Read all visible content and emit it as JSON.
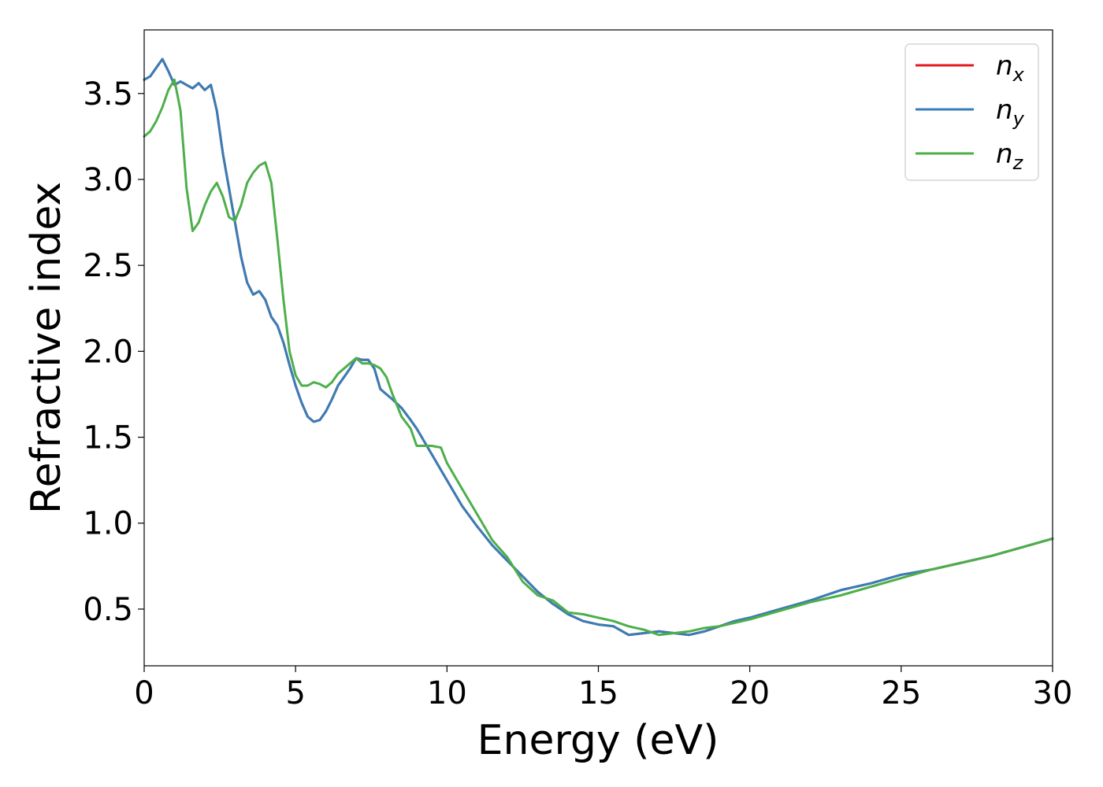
{
  "chart_data": {
    "type": "line",
    "title": "",
    "xlabel": "Energy (eV)",
    "ylabel": "Refractive index",
    "xlim": [
      0,
      30
    ],
    "ylim": [
      0.17,
      3.87
    ],
    "xticks": [
      0,
      5,
      10,
      15,
      20,
      25,
      30
    ],
    "yticks": [
      0.5,
      1.0,
      1.5,
      2.0,
      2.5,
      3.0,
      3.5
    ],
    "xtick_labels": [
      "0",
      "5",
      "10",
      "15",
      "20",
      "25",
      "30"
    ],
    "ytick_labels": [
      "0.5",
      "1.0",
      "1.5",
      "2.0",
      "2.5",
      "3.0",
      "3.5"
    ],
    "grid": false,
    "legend": "top-right",
    "series": [
      {
        "name": "n",
        "subscript": "x",
        "color": "#e41a1c",
        "x": [
          0,
          0.2,
          0.4,
          0.6,
          0.8,
          1.0,
          1.2,
          1.4,
          1.6,
          1.8,
          2.0,
          2.2,
          2.4,
          2.6,
          2.8,
          3.0,
          3.2,
          3.4,
          3.6,
          3.8,
          4.0,
          4.2,
          4.4,
          4.6,
          4.8,
          5.0,
          5.2,
          5.4,
          5.6,
          5.8,
          6.0,
          6.2,
          6.4,
          6.6,
          6.8,
          7.0,
          7.2,
          7.4,
          7.6,
          7.8,
          8.0,
          8.2,
          8.5,
          8.8,
          9.0,
          9.5,
          10.0,
          10.5,
          11.0,
          11.5,
          12.0,
          12.5,
          13.0,
          13.5,
          14.0,
          14.5,
          15.0,
          15.5,
          16.0,
          16.5,
          17.0,
          17.5,
          18.0,
          18.5,
          19.0,
          19.5,
          20.0,
          21.0,
          22.0,
          23.0,
          24.0,
          25.0,
          26.0,
          27.0,
          28.0,
          29.0,
          30.0
        ],
        "y": [
          3.58,
          3.6,
          3.65,
          3.7,
          3.63,
          3.55,
          3.57,
          3.55,
          3.53,
          3.56,
          3.52,
          3.55,
          3.4,
          3.15,
          2.95,
          2.75,
          2.55,
          2.4,
          2.33,
          2.35,
          2.3,
          2.2,
          2.15,
          2.05,
          1.92,
          1.8,
          1.7,
          1.62,
          1.59,
          1.6,
          1.65,
          1.72,
          1.8,
          1.85,
          1.9,
          1.96,
          1.95,
          1.95,
          1.9,
          1.78,
          1.75,
          1.72,
          1.67,
          1.6,
          1.55,
          1.4,
          1.25,
          1.1,
          0.98,
          0.87,
          0.78,
          0.69,
          0.6,
          0.53,
          0.47,
          0.43,
          0.41,
          0.4,
          0.35,
          0.36,
          0.37,
          0.36,
          0.35,
          0.37,
          0.4,
          0.43,
          0.45,
          0.5,
          0.55,
          0.61,
          0.65,
          0.7,
          0.73,
          0.77,
          0.81,
          0.86,
          0.91
        ]
      },
      {
        "name": "n",
        "subscript": "y",
        "color": "#377eb8",
        "x": [
          0,
          0.2,
          0.4,
          0.6,
          0.8,
          1.0,
          1.2,
          1.4,
          1.6,
          1.8,
          2.0,
          2.2,
          2.4,
          2.6,
          2.8,
          3.0,
          3.2,
          3.4,
          3.6,
          3.8,
          4.0,
          4.2,
          4.4,
          4.6,
          4.8,
          5.0,
          5.2,
          5.4,
          5.6,
          5.8,
          6.0,
          6.2,
          6.4,
          6.6,
          6.8,
          7.0,
          7.2,
          7.4,
          7.6,
          7.8,
          8.0,
          8.2,
          8.5,
          8.8,
          9.0,
          9.5,
          10.0,
          10.5,
          11.0,
          11.5,
          12.0,
          12.5,
          13.0,
          13.5,
          14.0,
          14.5,
          15.0,
          15.5,
          16.0,
          16.5,
          17.0,
          17.5,
          18.0,
          18.5,
          19.0,
          19.5,
          20.0,
          21.0,
          22.0,
          23.0,
          24.0,
          25.0,
          26.0,
          27.0,
          28.0,
          29.0,
          30.0
        ],
        "y": [
          3.58,
          3.6,
          3.65,
          3.7,
          3.63,
          3.55,
          3.57,
          3.55,
          3.53,
          3.56,
          3.52,
          3.55,
          3.4,
          3.15,
          2.95,
          2.75,
          2.55,
          2.4,
          2.33,
          2.35,
          2.3,
          2.2,
          2.15,
          2.05,
          1.92,
          1.8,
          1.7,
          1.62,
          1.59,
          1.6,
          1.65,
          1.72,
          1.8,
          1.85,
          1.9,
          1.96,
          1.95,
          1.95,
          1.9,
          1.78,
          1.75,
          1.72,
          1.67,
          1.6,
          1.55,
          1.4,
          1.25,
          1.1,
          0.98,
          0.87,
          0.78,
          0.69,
          0.6,
          0.53,
          0.47,
          0.43,
          0.41,
          0.4,
          0.35,
          0.36,
          0.37,
          0.36,
          0.35,
          0.37,
          0.4,
          0.43,
          0.45,
          0.5,
          0.55,
          0.61,
          0.65,
          0.7,
          0.73,
          0.77,
          0.81,
          0.86,
          0.91
        ]
      },
      {
        "name": "n",
        "subscript": "z",
        "color": "#4daf4a",
        "x": [
          0,
          0.2,
          0.4,
          0.6,
          0.8,
          1.0,
          1.2,
          1.4,
          1.6,
          1.8,
          2.0,
          2.2,
          2.4,
          2.6,
          2.8,
          3.0,
          3.2,
          3.4,
          3.6,
          3.8,
          4.0,
          4.2,
          4.4,
          4.6,
          4.8,
          5.0,
          5.2,
          5.4,
          5.6,
          5.8,
          6.0,
          6.2,
          6.4,
          6.6,
          6.8,
          7.0,
          7.2,
          7.4,
          7.6,
          7.8,
          8.0,
          8.2,
          8.5,
          8.8,
          9.0,
          9.5,
          9.8,
          10.0,
          10.5,
          11.0,
          11.5,
          12.0,
          12.5,
          13.0,
          13.5,
          14.0,
          14.5,
          15.0,
          15.5,
          16.0,
          16.5,
          17.0,
          17.5,
          18.0,
          18.5,
          19.0,
          19.5,
          20.0,
          21.0,
          22.0,
          23.0,
          24.0,
          25.0,
          26.0,
          27.0,
          28.0,
          29.0,
          30.0
        ],
        "y": [
          3.25,
          3.28,
          3.34,
          3.42,
          3.52,
          3.58,
          3.4,
          2.95,
          2.7,
          2.75,
          2.85,
          2.93,
          2.98,
          2.9,
          2.78,
          2.76,
          2.85,
          2.98,
          3.04,
          3.08,
          3.1,
          2.98,
          2.65,
          2.3,
          2.0,
          1.86,
          1.8,
          1.8,
          1.82,
          1.81,
          1.79,
          1.82,
          1.87,
          1.9,
          1.93,
          1.96,
          1.93,
          1.93,
          1.92,
          1.9,
          1.85,
          1.75,
          1.62,
          1.55,
          1.45,
          1.45,
          1.44,
          1.35,
          1.2,
          1.05,
          0.9,
          0.8,
          0.66,
          0.58,
          0.55,
          0.48,
          0.47,
          0.45,
          0.43,
          0.4,
          0.38,
          0.35,
          0.36,
          0.37,
          0.39,
          0.4,
          0.42,
          0.44,
          0.49,
          0.54,
          0.58,
          0.63,
          0.68,
          0.73,
          0.77,
          0.81,
          0.86,
          0.91
        ]
      }
    ]
  }
}
